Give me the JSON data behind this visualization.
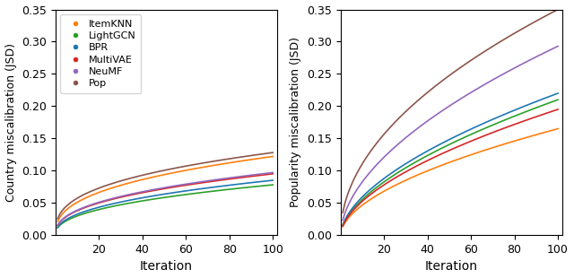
{
  "algorithms": [
    "ItemKNN",
    "LightGCN",
    "BPR",
    "MultiVAE",
    "NeuMF",
    "Pop"
  ],
  "colors": [
    "#ff7f0e",
    "#2ca02c",
    "#1f77b4",
    "#d62728",
    "#9467bd",
    "#8c564b"
  ],
  "iterations": 100,
  "x_ticks": [
    20,
    40,
    60,
    80,
    100
  ],
  "ylim": [
    0.0,
    0.35
  ],
  "yticks": [
    0.0,
    0.05,
    0.1,
    0.15,
    0.2,
    0.25,
    0.3,
    0.35
  ],
  "left_ylabel": "Country miscalibration (JSD)",
  "right_ylabel": "Popularity miscalibration (JSD)",
  "xlabel": "Iteration",
  "left_final": [
    0.122,
    0.078,
    0.085,
    0.095,
    0.097,
    0.128
  ],
  "left_power": [
    0.38,
    0.42,
    0.42,
    0.4,
    0.4,
    0.35
  ],
  "right_final": [
    0.165,
    0.21,
    0.22,
    0.195,
    0.293,
    0.35
  ],
  "right_power": [
    0.55,
    0.58,
    0.57,
    0.57,
    0.55,
    0.5
  ]
}
